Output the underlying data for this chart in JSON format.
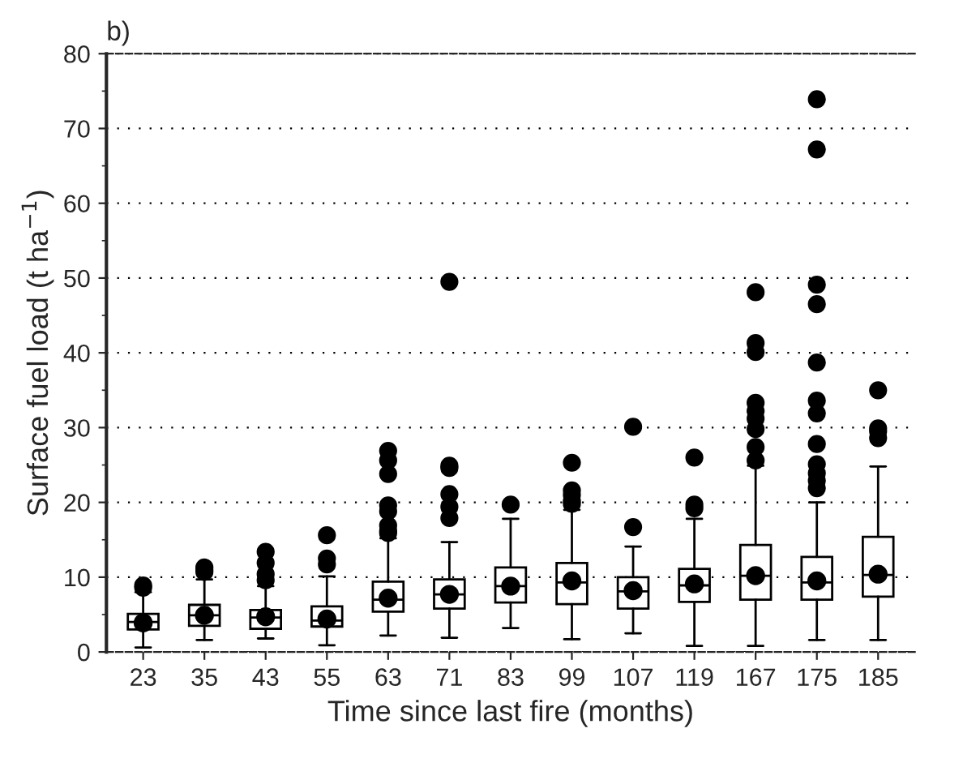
{
  "chart_data": {
    "type": "box",
    "title": "b)",
    "xlabel": "Time since last fire (months)",
    "ylabel": "Surface fuel load (t ha$^{−1}$)",
    "categories": [
      "23",
      "35",
      "43",
      "55",
      "63",
      "71",
      "83",
      "99",
      "107",
      "119",
      "167",
      "175",
      "185"
    ],
    "ylim": [
      0,
      80
    ],
    "yticks": [
      0,
      10,
      20,
      30,
      40,
      50,
      60,
      70,
      80
    ],
    "grid": "y",
    "legend": false,
    "boxes": [
      {
        "low": 0.6,
        "q1": 3.0,
        "median": 4.0,
        "q3": 5.1,
        "high": 8.0,
        "outliers": [
          8.6,
          8.9
        ]
      },
      {
        "low": 1.6,
        "q1": 3.5,
        "median": 4.9,
        "q3": 6.3,
        "high": 9.7,
        "outliers": [
          10.7,
          11.0,
          11.3
        ]
      },
      {
        "low": 1.8,
        "q1": 3.1,
        "median": 4.6,
        "q3": 5.6,
        "high": 8.8,
        "outliers": [
          9.6,
          10.4,
          11.9,
          13.4
        ]
      },
      {
        "low": 0.9,
        "q1": 3.4,
        "median": 4.2,
        "q3": 6.1,
        "high": 10.1,
        "outliers": [
          11.7,
          12.5,
          15.6
        ]
      },
      {
        "low": 2.2,
        "q1": 5.4,
        "median": 7.0,
        "q3": 9.4,
        "high": 15.2,
        "outliers": [
          15.9,
          16.2,
          16.9,
          18.8,
          19.6,
          23.8,
          25.6,
          26.9
        ]
      },
      {
        "low": 1.9,
        "q1": 5.8,
        "median": 7.7,
        "q3": 9.7,
        "high": 14.7,
        "outliers": [
          17.9,
          19.4,
          21.1,
          24.6,
          24.9,
          49.5
        ]
      },
      {
        "low": 3.2,
        "q1": 6.6,
        "median": 8.8,
        "q3": 11.3,
        "high": 17.8,
        "outliers": [
          19.7
        ]
      },
      {
        "low": 1.7,
        "q1": 6.4,
        "median": 9.3,
        "q3": 11.9,
        "high": 19.0,
        "outliers": [
          19.8,
          20.2,
          21.0,
          21.6,
          25.3
        ]
      },
      {
        "low": 2.5,
        "q1": 5.8,
        "median": 8.1,
        "q3": 10.0,
        "high": 14.1,
        "outliers": [
          16.7,
          30.1
        ]
      },
      {
        "low": 0.8,
        "q1": 6.7,
        "median": 8.9,
        "q3": 11.1,
        "high": 17.8,
        "outliers": [
          19.2,
          19.7,
          26.0
        ]
      },
      {
        "low": 0.8,
        "q1": 7.0,
        "median": 10.2,
        "q3": 14.3,
        "high": 24.9,
        "outliers": [
          25.6,
          27.4,
          29.8,
          31.2,
          32.2,
          33.3,
          40.1,
          41.3,
          48.1
        ]
      },
      {
        "low": 1.6,
        "q1": 7.0,
        "median": 9.3,
        "q3": 12.7,
        "high": 20.0,
        "outliers": [
          21.9,
          22.9,
          23.9,
          25.1,
          27.8,
          31.9,
          33.6,
          38.7,
          46.5,
          49.1,
          67.2,
          73.9
        ]
      },
      {
        "low": 1.6,
        "q1": 7.4,
        "median": 10.3,
        "q3": 15.4,
        "high": 24.8,
        "outliers": [
          28.6,
          29.5,
          29.9,
          35.0
        ]
      }
    ],
    "series": [
      {
        "type": "scatter",
        "color": "#000000",
        "marker": "circle",
        "x": [
          "23",
          "35",
          "43",
          "55",
          "63",
          "71",
          "83",
          "99",
          "107",
          "119",
          "167",
          "175",
          "185"
        ],
        "values": [
          3.9,
          4.9,
          4.7,
          4.4,
          7.2,
          7.7,
          8.8,
          9.5,
          8.2,
          9.1,
          10.2,
          9.5,
          10.4
        ]
      }
    ]
  }
}
